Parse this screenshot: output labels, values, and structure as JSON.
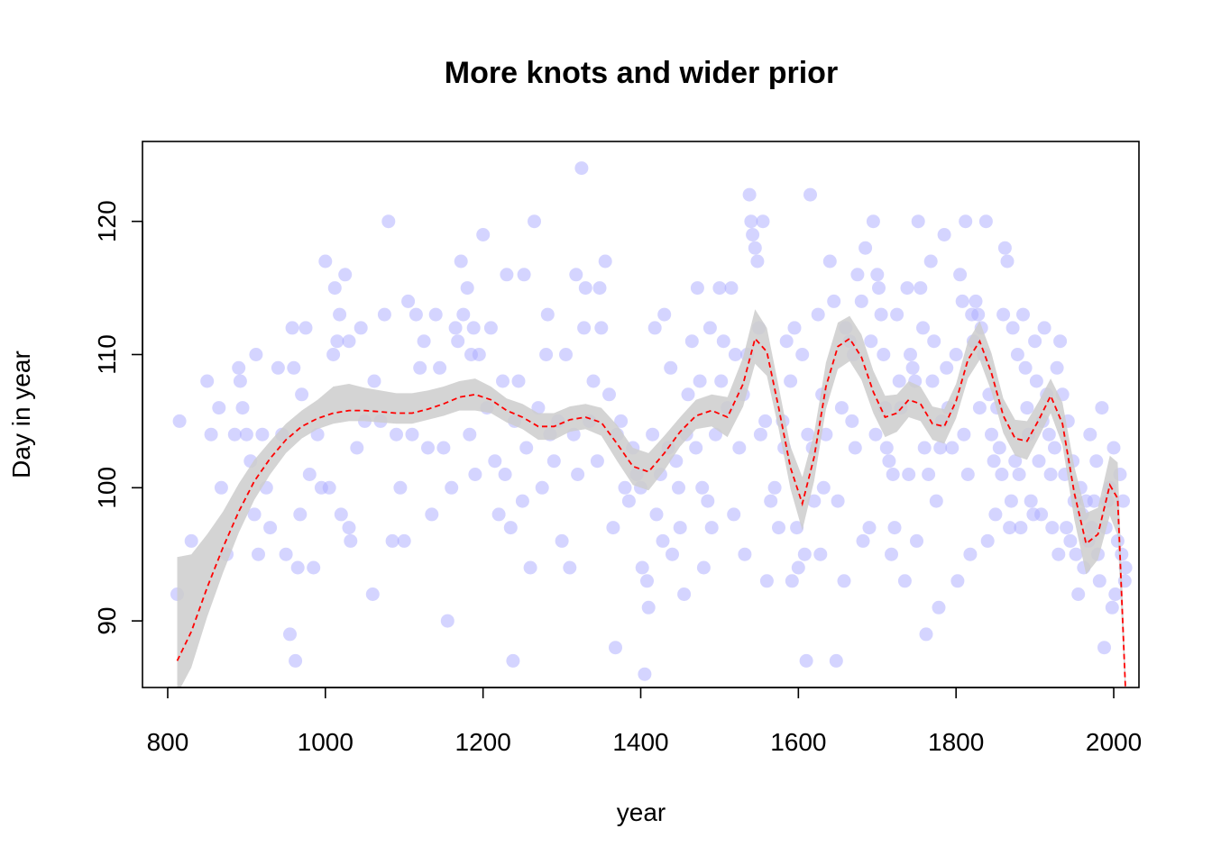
{
  "chart_data": {
    "type": "scatter",
    "title": "More knots and wider prior",
    "xlabel": "year",
    "ylabel": "Day in year",
    "xlim": [
      768,
      2032
    ],
    "ylim": [
      85,
      126
    ],
    "x_ticks": [
      "800",
      "1000",
      "1200",
      "1400",
      "1600",
      "1800",
      "2000"
    ],
    "y_ticks": [
      "90",
      "100",
      "110",
      "120"
    ],
    "grid": false,
    "legend": "none",
    "colors": {
      "points": "#aaaaff",
      "band": "#cccccc",
      "mean_line": "#ff0000",
      "frame": "#000000"
    },
    "mean": {
      "x": [
        812,
        830,
        850,
        870,
        890,
        910,
        930,
        950,
        970,
        990,
        1010,
        1030,
        1050,
        1070,
        1090,
        1110,
        1130,
        1150,
        1170,
        1190,
        1210,
        1230,
        1250,
        1270,
        1290,
        1310,
        1330,
        1350,
        1370,
        1390,
        1410,
        1430,
        1450,
        1470,
        1490,
        1510,
        1530,
        1545,
        1560,
        1575,
        1590,
        1605,
        1620,
        1635,
        1650,
        1665,
        1680,
        1695,
        1710,
        1725,
        1740,
        1755,
        1770,
        1785,
        1800,
        1815,
        1830,
        1845,
        1860,
        1875,
        1890,
        1905,
        1920,
        1935,
        1950,
        1965,
        1980,
        1995,
        2005,
        2015
      ],
      "y": [
        87.0,
        89.2,
        92.5,
        95.5,
        98.2,
        100.5,
        102.2,
        103.6,
        104.6,
        105.2,
        105.6,
        105.8,
        105.8,
        105.7,
        105.6,
        105.6,
        105.9,
        106.3,
        106.8,
        107.0,
        106.6,
        105.8,
        105.3,
        104.6,
        104.6,
        105.1,
        105.3,
        104.9,
        103.3,
        101.6,
        101.2,
        102.6,
        104.2,
        105.4,
        105.8,
        105.3,
        107.8,
        111.2,
        110.2,
        106.0,
        101.5,
        98.8,
        102.3,
        107.6,
        110.6,
        111.2,
        109.8,
        107.2,
        105.3,
        105.6,
        106.6,
        106.3,
        104.8,
        104.6,
        106.5,
        109.6,
        111.0,
        108.6,
        105.4,
        103.7,
        103.5,
        105.1,
        106.9,
        104.8,
        99.6,
        95.8,
        96.5,
        100.2,
        99.2,
        84.8
      ],
      "lower": [
        84.5,
        86.5,
        90.3,
        93.6,
        96.6,
        99.1,
        101.0,
        102.6,
        103.7,
        104.4,
        104.8,
        105.0,
        105.0,
        104.9,
        104.8,
        104.8,
        105.1,
        105.4,
        105.8,
        105.8,
        105.6,
        104.9,
        104.4,
        103.6,
        103.6,
        104.2,
        104.4,
        103.9,
        102.0,
        100.2,
        99.8,
        101.3,
        103.1,
        104.4,
        104.6,
        103.8,
        106.1,
        109.3,
        108.4,
        104.4,
        99.9,
        96.8,
        100.5,
        105.9,
        108.9,
        109.5,
        108.1,
        105.6,
        103.8,
        104.2,
        105.3,
        105.0,
        103.6,
        103.3,
        105.2,
        108.2,
        109.6,
        107.2,
        104.1,
        102.4,
        102.1,
        103.8,
        105.6,
        103.2,
        97.6,
        93.5,
        94.6,
        97.9,
        96.4,
        84.0
      ],
      "upper": [
        94.8,
        95.0,
        96.5,
        98.2,
        100.3,
        102.1,
        103.5,
        104.8,
        105.8,
        106.6,
        107.6,
        107.8,
        107.5,
        107.3,
        107.1,
        107.1,
        107.3,
        107.6,
        108.0,
        108.2,
        107.6,
        106.7,
        106.3,
        105.6,
        105.6,
        106.1,
        106.3,
        106.0,
        104.7,
        103.0,
        102.6,
        103.9,
        105.3,
        106.6,
        107.0,
        106.8,
        109.8,
        113.4,
        112.0,
        107.6,
        103.1,
        100.8,
        104.1,
        109.4,
        112.4,
        112.9,
        111.5,
        108.8,
        106.9,
        107.0,
        108.0,
        107.6,
        106.1,
        105.9,
        107.8,
        111.0,
        112.5,
        110.1,
        106.7,
        105.1,
        105.0,
        106.5,
        108.2,
        106.4,
        101.6,
        98.1,
        98.5,
        102.4,
        101.9,
        86.0
      ]
    },
    "points": [
      [
        812,
        92
      ],
      [
        815,
        105
      ],
      [
        830,
        96
      ],
      [
        850,
        108
      ],
      [
        855,
        104
      ],
      [
        865,
        106
      ],
      [
        868,
        100
      ],
      [
        875,
        95
      ],
      [
        885,
        104
      ],
      [
        890,
        109
      ],
      [
        892,
        108
      ],
      [
        895,
        106
      ],
      [
        900,
        104
      ],
      [
        905,
        102
      ],
      [
        910,
        98
      ],
      [
        912,
        110
      ],
      [
        915,
        95
      ],
      [
        920,
        104
      ],
      [
        925,
        100
      ],
      [
        930,
        97
      ],
      [
        940,
        109
      ],
      [
        945,
        104
      ],
      [
        950,
        95
      ],
      [
        955,
        89
      ],
      [
        958,
        112
      ],
      [
        960,
        109
      ],
      [
        962,
        87
      ],
      [
        965,
        94
      ],
      [
        968,
        98
      ],
      [
        970,
        107
      ],
      [
        975,
        112
      ],
      [
        980,
        101
      ],
      [
        985,
        94
      ],
      [
        990,
        104
      ],
      [
        995,
        100
      ],
      [
        1000,
        117
      ],
      [
        1005,
        100
      ],
      [
        1010,
        110
      ],
      [
        1012,
        115
      ],
      [
        1015,
        111
      ],
      [
        1018,
        113
      ],
      [
        1020,
        98
      ],
      [
        1025,
        116
      ],
      [
        1030,
        111
      ],
      [
        1030,
        97
      ],
      [
        1032,
        96
      ],
      [
        1040,
        103
      ],
      [
        1045,
        112
      ],
      [
        1050,
        105
      ],
      [
        1060,
        92
      ],
      [
        1062,
        108
      ],
      [
        1070,
        105
      ],
      [
        1075,
        113
      ],
      [
        1080,
        120
      ],
      [
        1085,
        96
      ],
      [
        1090,
        104
      ],
      [
        1095,
        100
      ],
      [
        1100,
        96
      ],
      [
        1105,
        114
      ],
      [
        1110,
        104
      ],
      [
        1115,
        113
      ],
      [
        1120,
        109
      ],
      [
        1125,
        111
      ],
      [
        1130,
        103
      ],
      [
        1135,
        98
      ],
      [
        1140,
        113
      ],
      [
        1145,
        109
      ],
      [
        1150,
        103
      ],
      [
        1155,
        90
      ],
      [
        1160,
        100
      ],
      [
        1165,
        112
      ],
      [
        1168,
        111
      ],
      [
        1172,
        117
      ],
      [
        1175,
        113
      ],
      [
        1180,
        115
      ],
      [
        1183,
        104
      ],
      [
        1185,
        110
      ],
      [
        1188,
        112
      ],
      [
        1190,
        101
      ],
      [
        1195,
        110
      ],
      [
        1200,
        119
      ],
      [
        1205,
        106
      ],
      [
        1210,
        112
      ],
      [
        1215,
        102
      ],
      [
        1220,
        98
      ],
      [
        1225,
        108
      ],
      [
        1228,
        101
      ],
      [
        1230,
        116
      ],
      [
        1235,
        97
      ],
      [
        1238,
        87
      ],
      [
        1240,
        105
      ],
      [
        1245,
        108
      ],
      [
        1250,
        99
      ],
      [
        1252,
        116
      ],
      [
        1255,
        103
      ],
      [
        1260,
        94
      ],
      [
        1265,
        120
      ],
      [
        1270,
        106
      ],
      [
        1275,
        100
      ],
      [
        1280,
        110
      ],
      [
        1282,
        113
      ],
      [
        1285,
        104
      ],
      [
        1290,
        102
      ],
      [
        1295,
        105
      ],
      [
        1300,
        96
      ],
      [
        1305,
        110
      ],
      [
        1310,
        94
      ],
      [
        1315,
        104
      ],
      [
        1318,
        116
      ],
      [
        1320,
        101
      ],
      [
        1325,
        124
      ],
      [
        1328,
        112
      ],
      [
        1330,
        115
      ],
      [
        1335,
        105
      ],
      [
        1340,
        108
      ],
      [
        1345,
        102
      ],
      [
        1348,
        115
      ],
      [
        1350,
        112
      ],
      [
        1355,
        117
      ],
      [
        1360,
        107
      ],
      [
        1365,
        97
      ],
      [
        1368,
        88
      ],
      [
        1370,
        104
      ],
      [
        1375,
        105
      ],
      [
        1380,
        100
      ],
      [
        1385,
        99
      ],
      [
        1390,
        103
      ],
      [
        1395,
        101
      ],
      [
        1400,
        100
      ],
      [
        1402,
        94
      ],
      [
        1405,
        86
      ],
      [
        1408,
        93
      ],
      [
        1410,
        91
      ],
      [
        1415,
        104
      ],
      [
        1418,
        112
      ],
      [
        1420,
        98
      ],
      [
        1425,
        101
      ],
      [
        1428,
        96
      ],
      [
        1430,
        113
      ],
      [
        1435,
        103
      ],
      [
        1438,
        109
      ],
      [
        1440,
        95
      ],
      [
        1445,
        102
      ],
      [
        1448,
        100
      ],
      [
        1450,
        97
      ],
      [
        1455,
        92
      ],
      [
        1458,
        104
      ],
      [
        1460,
        107
      ],
      [
        1465,
        111
      ],
      [
        1470,
        103
      ],
      [
        1472,
        115
      ],
      [
        1475,
        108
      ],
      [
        1478,
        100
      ],
      [
        1480,
        94
      ],
      [
        1485,
        99
      ],
      [
        1488,
        112
      ],
      [
        1490,
        97
      ],
      [
        1495,
        104
      ],
      [
        1500,
        115
      ],
      [
        1502,
        108
      ],
      [
        1505,
        111
      ],
      [
        1510,
        106
      ],
      [
        1515,
        115
      ],
      [
        1518,
        98
      ],
      [
        1520,
        110
      ],
      [
        1525,
        103
      ],
      [
        1530,
        107
      ],
      [
        1532,
        95
      ],
      [
        1535,
        110
      ],
      [
        1538,
        122
      ],
      [
        1540,
        120
      ],
      [
        1542,
        119
      ],
      [
        1545,
        118
      ],
      [
        1548,
        117
      ],
      [
        1550,
        112
      ],
      [
        1552,
        104
      ],
      [
        1555,
        120
      ],
      [
        1558,
        105
      ],
      [
        1560,
        93
      ],
      [
        1565,
        99
      ],
      [
        1570,
        100
      ],
      [
        1575,
        97
      ],
      [
        1580,
        105
      ],
      [
        1582,
        103
      ],
      [
        1585,
        111
      ],
      [
        1590,
        108
      ],
      [
        1592,
        93
      ],
      [
        1595,
        112
      ],
      [
        1598,
        97
      ],
      [
        1600,
        94
      ],
      [
        1605,
        110
      ],
      [
        1608,
        95
      ],
      [
        1610,
        87
      ],
      [
        1612,
        104
      ],
      [
        1615,
        122
      ],
      [
        1618,
        103
      ],
      [
        1620,
        99
      ],
      [
        1625,
        113
      ],
      [
        1628,
        95
      ],
      [
        1630,
        107
      ],
      [
        1632,
        100
      ],
      [
        1635,
        104
      ],
      [
        1640,
        117
      ],
      [
        1645,
        114
      ],
      [
        1648,
        87
      ],
      [
        1650,
        99
      ],
      [
        1655,
        106
      ],
      [
        1658,
        93
      ],
      [
        1660,
        112
      ],
      [
        1665,
        111
      ],
      [
        1668,
        105
      ],
      [
        1670,
        110
      ],
      [
        1672,
        103
      ],
      [
        1675,
        116
      ],
      [
        1680,
        114
      ],
      [
        1682,
        96
      ],
      [
        1685,
        118
      ],
      [
        1690,
        97
      ],
      [
        1692,
        111
      ],
      [
        1695,
        120
      ],
      [
        1698,
        104
      ],
      [
        1700,
        116
      ],
      [
        1702,
        115
      ],
      [
        1705,
        113
      ],
      [
        1708,
        110
      ],
      [
        1710,
        106
      ],
      [
        1712,
        103
      ],
      [
        1715,
        102
      ],
      [
        1718,
        95
      ],
      [
        1720,
        101
      ],
      [
        1722,
        97
      ],
      [
        1725,
        113
      ],
      [
        1728,
        108
      ],
      [
        1730,
        106
      ],
      [
        1735,
        93
      ],
      [
        1738,
        115
      ],
      [
        1740,
        101
      ],
      [
        1742,
        110
      ],
      [
        1745,
        109
      ],
      [
        1748,
        108
      ],
      [
        1750,
        96
      ],
      [
        1752,
        120
      ],
      [
        1755,
        115
      ],
      [
        1758,
        112
      ],
      [
        1760,
        103
      ],
      [
        1762,
        89
      ],
      [
        1765,
        101
      ],
      [
        1768,
        117
      ],
      [
        1770,
        108
      ],
      [
        1772,
        111
      ],
      [
        1775,
        99
      ],
      [
        1778,
        91
      ],
      [
        1780,
        103
      ],
      [
        1782,
        105
      ],
      [
        1785,
        119
      ],
      [
        1788,
        109
      ],
      [
        1790,
        106
      ],
      [
        1795,
        103
      ],
      [
        1800,
        110
      ],
      [
        1802,
        93
      ],
      [
        1805,
        116
      ],
      [
        1808,
        114
      ],
      [
        1810,
        104
      ],
      [
        1812,
        120
      ],
      [
        1815,
        101
      ],
      [
        1818,
        95
      ],
      [
        1820,
        113
      ],
      [
        1822,
        111
      ],
      [
        1825,
        114
      ],
      [
        1828,
        113
      ],
      [
        1830,
        106
      ],
      [
        1832,
        112
      ],
      [
        1835,
        110
      ],
      [
        1838,
        120
      ],
      [
        1840,
        96
      ],
      [
        1842,
        107
      ],
      [
        1845,
        104
      ],
      [
        1848,
        102
      ],
      [
        1850,
        98
      ],
      [
        1852,
        106
      ],
      [
        1855,
        103
      ],
      [
        1858,
        101
      ],
      [
        1860,
        113
      ],
      [
        1862,
        118
      ],
      [
        1865,
        117
      ],
      [
        1868,
        97
      ],
      [
        1870,
        99
      ],
      [
        1872,
        112
      ],
      [
        1875,
        102
      ],
      [
        1878,
        110
      ],
      [
        1880,
        101
      ],
      [
        1882,
        97
      ],
      [
        1885,
        113
      ],
      [
        1888,
        109
      ],
      [
        1890,
        106
      ],
      [
        1892,
        104
      ],
      [
        1895,
        99
      ],
      [
        1898,
        98
      ],
      [
        1900,
        111
      ],
      [
        1902,
        108
      ],
      [
        1905,
        102
      ],
      [
        1908,
        98
      ],
      [
        1910,
        105
      ],
      [
        1912,
        112
      ],
      [
        1915,
        107
      ],
      [
        1918,
        104
      ],
      [
        1920,
        101
      ],
      [
        1922,
        97
      ],
      [
        1925,
        103
      ],
      [
        1928,
        109
      ],
      [
        1930,
        95
      ],
      [
        1932,
        111
      ],
      [
        1935,
        107
      ],
      [
        1938,
        101
      ],
      [
        1940,
        97
      ],
      [
        1942,
        105
      ],
      [
        1945,
        96
      ],
      [
        1948,
        102
      ],
      [
        1950,
        99
      ],
      [
        1952,
        95
      ],
      [
        1955,
        92
      ],
      [
        1958,
        100
      ],
      [
        1960,
        98
      ],
      [
        1962,
        94
      ],
      [
        1965,
        99
      ],
      [
        1968,
        96
      ],
      [
        1970,
        104
      ],
      [
        1972,
        97
      ],
      [
        1975,
        99
      ],
      [
        1978,
        102
      ],
      [
        1980,
        95
      ],
      [
        1982,
        93
      ],
      [
        1985,
        106
      ],
      [
        1988,
        88
      ],
      [
        1990,
        97
      ],
      [
        1992,
        99
      ],
      [
        1995,
        100
      ],
      [
        1998,
        91
      ],
      [
        2000,
        103
      ],
      [
        2002,
        92
      ],
      [
        2005,
        96
      ],
      [
        2008,
        101
      ],
      [
        2010,
        95
      ],
      [
        2012,
        99
      ],
      [
        2014,
        93
      ],
      [
        2015,
        94
      ]
    ]
  }
}
